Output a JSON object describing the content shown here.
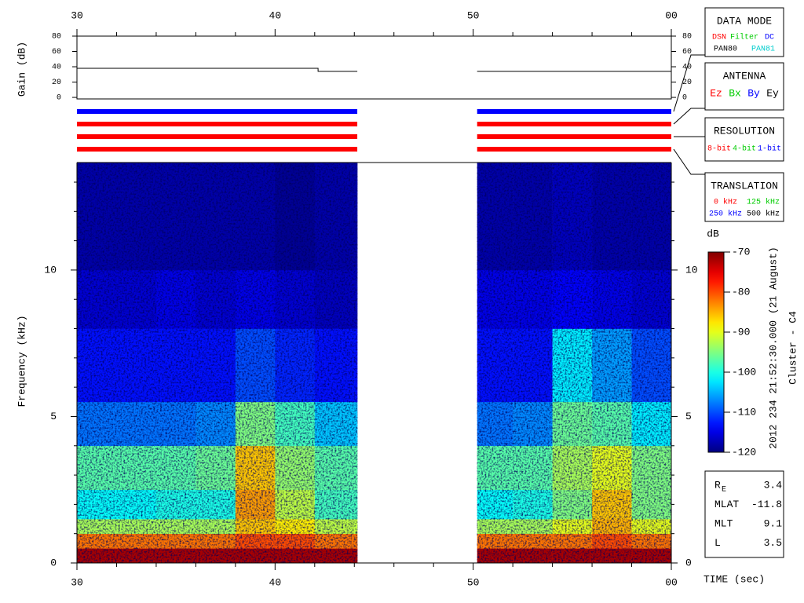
{
  "chart_data": [
    {
      "type": "line",
      "ylabel": "Gain (dB)",
      "xlim": [
        30,
        60
      ],
      "xticks": [
        30,
        40,
        50,
        {
          "value": 60,
          "label": "00"
        }
      ],
      "xminorticks": [
        32,
        34,
        36,
        38,
        42,
        44,
        46,
        48,
        52,
        54,
        56,
        58
      ],
      "ylim": [
        -2,
        80
      ],
      "yticks": [
        0,
        20,
        40,
        60,
        80
      ],
      "x": [
        30,
        42.17,
        42.17,
        44.15,
        44.15,
        50.2,
        60
      ],
      "values": [
        38,
        38,
        34,
        34,
        null,
        34,
        34
      ],
      "color": "#000000"
    },
    {
      "type": "indicator",
      "x_ranges": [
        [
          30,
          44.15
        ],
        [
          50.2,
          60
        ]
      ],
      "rows": [
        {
          "name": "DATA MODE",
          "selected": 2,
          "options": [
            {
              "label": "DSN",
              "color": "#ff0000"
            },
            {
              "label": "Filter",
              "color": "#00cc00"
            },
            {
              "label": "DC",
              "color": "#0000ff"
            },
            {
              "label": "PAN80",
              "color": "#000000"
            },
            {
              "label": "PAN81",
              "color": "#00cccc"
            }
          ]
        },
        {
          "name": "ANTENNA",
          "selected": 0,
          "options": [
            {
              "label": "Ez",
              "color": "#ff0000"
            },
            {
              "label": "Bx",
              "color": "#00cc00"
            },
            {
              "label": "By",
              "color": "#0000ff"
            },
            {
              "label": "Ey",
              "color": "#000000"
            }
          ]
        },
        {
          "name": "RESOLUTION",
          "selected": 0,
          "options": [
            {
              "label": "8-bit",
              "color": "#ff0000"
            },
            {
              "label": "4-bit",
              "color": "#00cc00"
            },
            {
              "label": "1-bit",
              "color": "#0000ff"
            }
          ]
        },
        {
          "name": "TRANSLATION",
          "selected": 0,
          "options": [
            {
              "label": "0 kHz",
              "color": "#ff0000"
            },
            {
              "label": "125 kHz",
              "color": "#00cc00"
            },
            {
              "label": "250 kHz",
              "color": "#0000ff"
            },
            {
              "label": "500 kHz",
              "color": "#000000"
            }
          ]
        }
      ]
    },
    {
      "type": "heatmap",
      "ylabel": "Frequency (kHz)",
      "xlabel": "TIME (sec)",
      "xlim": [
        30,
        60
      ],
      "xticks": [
        30,
        40,
        50,
        {
          "value": 60,
          "label": "00"
        }
      ],
      "xminorticks": [
        32,
        34,
        36,
        38,
        42,
        44,
        46,
        48,
        52,
        54,
        56,
        58
      ],
      "ylim": [
        0,
        13.67
      ],
      "yticks": [
        0,
        5,
        10
      ],
      "yminorticks": [
        1,
        2,
        3,
        4,
        6,
        7,
        8,
        9,
        11,
        12,
        13
      ],
      "xedges": [
        30,
        32,
        34,
        36,
        38,
        40,
        42,
        44.15,
        50.2,
        52,
        54,
        56,
        58,
        60
      ],
      "yedges": [
        0,
        0.5,
        1,
        1.5,
        2.5,
        4,
        5.5,
        8,
        10,
        13.67
      ],
      "values": [
        [
          -72,
          -72,
          -72,
          -72,
          -72,
          -72,
          -72,
          null,
          -72,
          -72,
          -72,
          -72,
          -72
        ],
        [
          -82,
          -82,
          -82,
          -82,
          -80,
          -80,
          -82,
          null,
          -82,
          -82,
          -82,
          -80,
          -82
        ],
        [
          -93,
          -93,
          -93,
          -93,
          -86,
          -88,
          -92,
          null,
          -93,
          -93,
          -90,
          -85,
          -90
        ],
        [
          -101,
          -101,
          -100,
          -100,
          -84,
          -92,
          -98,
          null,
          -101,
          -100,
          -95,
          -86,
          -95
        ],
        [
          -97,
          -97,
          -97,
          -96,
          -86,
          -94,
          -97,
          null,
          -97,
          -97,
          -93,
          -90,
          -95
        ],
        [
          -108,
          -108,
          -108,
          -107,
          -95,
          -98,
          -104,
          null,
          -108,
          -107,
          -96,
          -97,
          -102
        ],
        [
          -113,
          -113,
          -113,
          -113,
          -110,
          -112,
          -113,
          null,
          -113,
          -113,
          -102,
          -106,
          -110
        ],
        [
          -116,
          -116,
          -115,
          -116,
          -115,
          -116,
          -117,
          null,
          -115,
          -115,
          -114,
          -115,
          -116
        ],
        [
          -118,
          -118,
          -118,
          -118,
          -118,
          -119,
          -118,
          null,
          -118,
          -118,
          -117,
          -118,
          -118
        ]
      ],
      "zlim": [
        -120,
        -70
      ],
      "zticks": [
        -70,
        -80,
        -90,
        -100,
        -110,
        -120
      ],
      "zlabel": "dB"
    }
  ],
  "info": {
    "timestamp": "2012 234 21:52:30.000 (21 August)",
    "spacecraft": "Cluster - C4",
    "params": [
      {
        "label": "R",
        "sub": "E",
        "value": 3.4
      },
      {
        "label": "MLAT",
        "value": -11.8
      },
      {
        "label": "MLT",
        "value": 9.1
      },
      {
        "label": "L",
        "value": 3.5
      }
    ]
  }
}
